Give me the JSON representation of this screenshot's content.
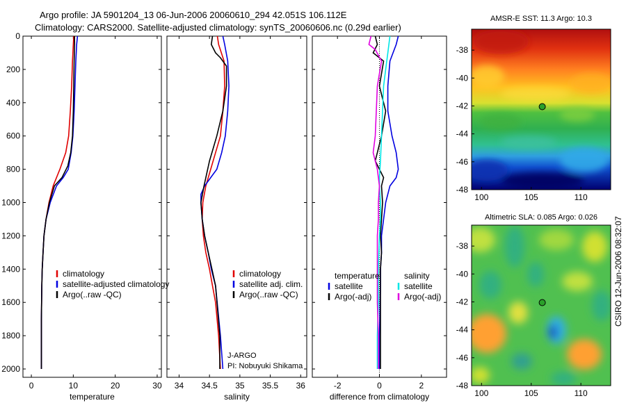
{
  "header": {
    "title_line1": "Argo profile: JA 5901204_13 06-Jun-2006 20060610_294 42.051S 106.112E",
    "title_line2": "Climatology: CARS2000. Satellite-adjusted climatology: synTS_20060606.nc (0.29d earlier)"
  },
  "colors": {
    "climatology": "#e00000",
    "satellite": "#0000e0",
    "argo": "#000000",
    "salinity_sat": "#00e6e6",
    "salinity_argo": "#e000e0"
  },
  "side_label": "CSIRO 12-Jun-2006 08:32:07",
  "credit": {
    "line1": "J-ARGO",
    "line2": "PI: Nobuyuki Shikama"
  },
  "chart_data": [
    {
      "type": "line",
      "id": "temperature",
      "xlabel": "temperature",
      "ylabel": "",
      "xlim": [
        -2,
        31
      ],
      "ylim": [
        2050,
        0
      ],
      "xticks": [
        0,
        10,
        20,
        30
      ],
      "yticks": [
        0,
        200,
        400,
        600,
        800,
        1000,
        1200,
        1400,
        1600,
        1800,
        2000
      ],
      "legend": [
        "climatology",
        "satellite-adjusted climatology",
        "Argo(..raw -QC)"
      ],
      "legend_placement": "lower-right",
      "series": [
        {
          "name": "climatology",
          "color": "#e00000",
          "x": [
            10.1,
            10.0,
            9.8,
            9.6,
            9.3,
            8.9,
            8.2,
            6.8,
            5.2,
            4.2,
            3.5,
            3.0,
            2.8,
            2.6,
            2.5,
            2.4,
            2.4
          ],
          "y": [
            0,
            50,
            150,
            300,
            450,
            600,
            700,
            800,
            900,
            1000,
            1100,
            1200,
            1300,
            1400,
            1500,
            1700,
            2000
          ]
        },
        {
          "name": "satellite-adjusted climatology",
          "color": "#0000e0",
          "x": [
            11.0,
            10.8,
            10.6,
            10.4,
            10.2,
            9.9,
            9.5,
            8.8,
            7.6,
            6.0,
            4.5,
            3.5,
            3.0,
            2.8,
            2.6,
            2.5,
            2.4,
            2.4
          ],
          "y": [
            0,
            50,
            150,
            300,
            450,
            600,
            700,
            800,
            850,
            900,
            1000,
            1100,
            1200,
            1300,
            1400,
            1500,
            1700,
            2000
          ]
        },
        {
          "name": "Argo(..raw -QC)",
          "color": "#000000",
          "x": [
            10.3,
            10.3,
            10.2,
            10.1,
            10.0,
            9.8,
            9.4,
            8.7,
            7.3,
            5.5,
            4.3,
            3.5,
            3.0,
            2.8,
            2.6,
            2.5,
            2.4,
            2.4
          ],
          "y": [
            0,
            50,
            150,
            300,
            450,
            600,
            700,
            780,
            850,
            900,
            1000,
            1100,
            1200,
            1300,
            1400,
            1500,
            1700,
            2000
          ]
        }
      ]
    },
    {
      "type": "line",
      "id": "salinity",
      "xlabel": "salinity",
      "ylabel": "",
      "xlim": [
        33.8,
        36.1
      ],
      "ylim": [
        2050,
        0
      ],
      "xticks": [
        34,
        34.5,
        35,
        35.5,
        36
      ],
      "legend": [
        "climatology",
        "satellite adj. clim.",
        "Argo(..raw -QC)"
      ],
      "legend_placement": "lower-right",
      "series": [
        {
          "name": "climatology",
          "color": "#e00000",
          "x": [
            34.63,
            34.65,
            34.74,
            34.75,
            34.72,
            34.68,
            34.6,
            34.52,
            34.44,
            34.39,
            34.38,
            34.4,
            34.44,
            34.5,
            34.55,
            34.6,
            34.65,
            34.68
          ],
          "y": [
            0,
            50,
            150,
            300,
            450,
            600,
            700,
            800,
            900,
            1000,
            1100,
            1200,
            1300,
            1400,
            1500,
            1600,
            1800,
            2000
          ]
        },
        {
          "name": "satellite adj. clim.",
          "color": "#0000e0",
          "x": [
            34.72,
            34.75,
            34.8,
            34.82,
            34.8,
            34.76,
            34.7,
            34.62,
            34.52,
            34.42,
            34.36,
            34.36,
            34.38,
            34.42,
            34.48,
            34.53,
            34.6,
            34.68,
            34.72
          ],
          "y": [
            0,
            50,
            150,
            300,
            450,
            600,
            700,
            800,
            850,
            900,
            950,
            1000,
            1100,
            1200,
            1300,
            1400,
            1500,
            1800,
            2000
          ]
        },
        {
          "name": "Argo(..raw -QC)",
          "color": "#000000",
          "x": [
            34.55,
            34.53,
            34.6,
            34.68,
            34.78,
            34.78,
            34.72,
            34.62,
            34.5,
            34.41,
            34.36,
            34.38,
            34.42,
            34.48,
            34.54,
            34.6,
            34.67,
            34.67
          ],
          "y": [
            0,
            50,
            100,
            130,
            180,
            300,
            450,
            600,
            750,
            900,
            1000,
            1100,
            1200,
            1300,
            1400,
            1500,
            1800,
            2000
          ]
        }
      ]
    },
    {
      "type": "line",
      "id": "difference",
      "xlabel": "difference from climatology",
      "ylabel": "",
      "xlim": [
        -3.2,
        3.2
      ],
      "ylim": [
        2050,
        0
      ],
      "xticks": [
        -2,
        0,
        2
      ],
      "reference_line_x": 0,
      "legend_groups": [
        {
          "header": "temperature",
          "entries": [
            "satellite",
            "Argo(-adj)"
          ]
        },
        {
          "header": "salinity",
          "entries": [
            "satellite",
            "Argo(-adj)"
          ]
        }
      ],
      "legend_placement": "lower-center",
      "series": [
        {
          "name": "satellite",
          "group": "temperature",
          "color": "#0000e0",
          "x": [
            0.9,
            0.8,
            0.5,
            0.4,
            0.4,
            0.6,
            0.8,
            0.9,
            0.8,
            0.5,
            0.3,
            0.2,
            0.1,
            0.1,
            0.05,
            0.05,
            0.0,
            0.0
          ],
          "y": [
            0,
            50,
            150,
            300,
            450,
            600,
            700,
            800,
            850,
            900,
            1000,
            1100,
            1200,
            1300,
            1400,
            1500,
            1800,
            2000
          ]
        },
        {
          "name": "Argo(-adj)",
          "group": "temperature",
          "color": "#000000",
          "x": [
            -0.2,
            -0.1,
            -0.3,
            0.2,
            0.0,
            0.3,
            0.1,
            -0.2,
            0.2,
            0.1,
            0.15,
            0.1,
            0.05,
            0.1,
            0.05,
            0.05,
            0.05,
            0.05
          ],
          "y": [
            0,
            50,
            100,
            150,
            300,
            450,
            600,
            750,
            850,
            900,
            1000,
            1100,
            1200,
            1300,
            1400,
            1500,
            1800,
            2000
          ]
        },
        {
          "name": "satellite",
          "group": "salinity",
          "color": "#00e6e6",
          "x": [
            0.5,
            0.4,
            0.3,
            0.2,
            0.15,
            0.1,
            0.05,
            0.0,
            0.0,
            0.05,
            0.05,
            0.0,
            -0.05,
            -0.05,
            -0.1,
            -0.1
          ],
          "y": [
            0,
            100,
            200,
            300,
            450,
            600,
            750,
            850,
            900,
            1000,
            1100,
            1200,
            1400,
            1600,
            1800,
            2000
          ]
        },
        {
          "name": "Argo(-adj)",
          "group": "salinity",
          "color": "#e000e0",
          "x": [
            -0.4,
            -0.5,
            -0.2,
            0.1,
            -0.1,
            -0.15,
            -0.2,
            -0.3,
            -0.1,
            0.0,
            -0.05,
            -0.05,
            -0.1,
            -0.1,
            -0.1,
            -0.05,
            -0.05
          ],
          "y": [
            0,
            50,
            80,
            150,
            300,
            450,
            600,
            700,
            800,
            900,
            1000,
            1100,
            1200,
            1400,
            1600,
            1800,
            2000
          ]
        }
      ]
    },
    {
      "type": "heatmap",
      "id": "sst-map",
      "title": "AMSR-E SST: 11.3 Argo: 10.3",
      "xlim": [
        99,
        113
      ],
      "ylim": [
        -48,
        -36.5
      ],
      "xticks": [
        100,
        105,
        110
      ],
      "yticks": [
        -38,
        -40,
        -42,
        -44,
        -46,
        -48
      ],
      "marker": {
        "lon": 106.112,
        "lat": -42.051
      },
      "colormap": "jet",
      "pattern": "warm north, cold south, front near 44S"
    },
    {
      "type": "heatmap",
      "id": "sla-map",
      "title": "Altimetric SLA: 0.085 Argo: 0.026",
      "xlim": [
        99,
        113
      ],
      "ylim": [
        -48,
        -36.5
      ],
      "xticks": [
        100,
        105,
        110
      ],
      "yticks": [
        -38,
        -40,
        -42,
        -44,
        -46,
        -48
      ],
      "marker": {
        "lon": 106.112,
        "lat": -42.051
      },
      "colormap": "jet",
      "pattern": "mesoscale eddies"
    }
  ]
}
